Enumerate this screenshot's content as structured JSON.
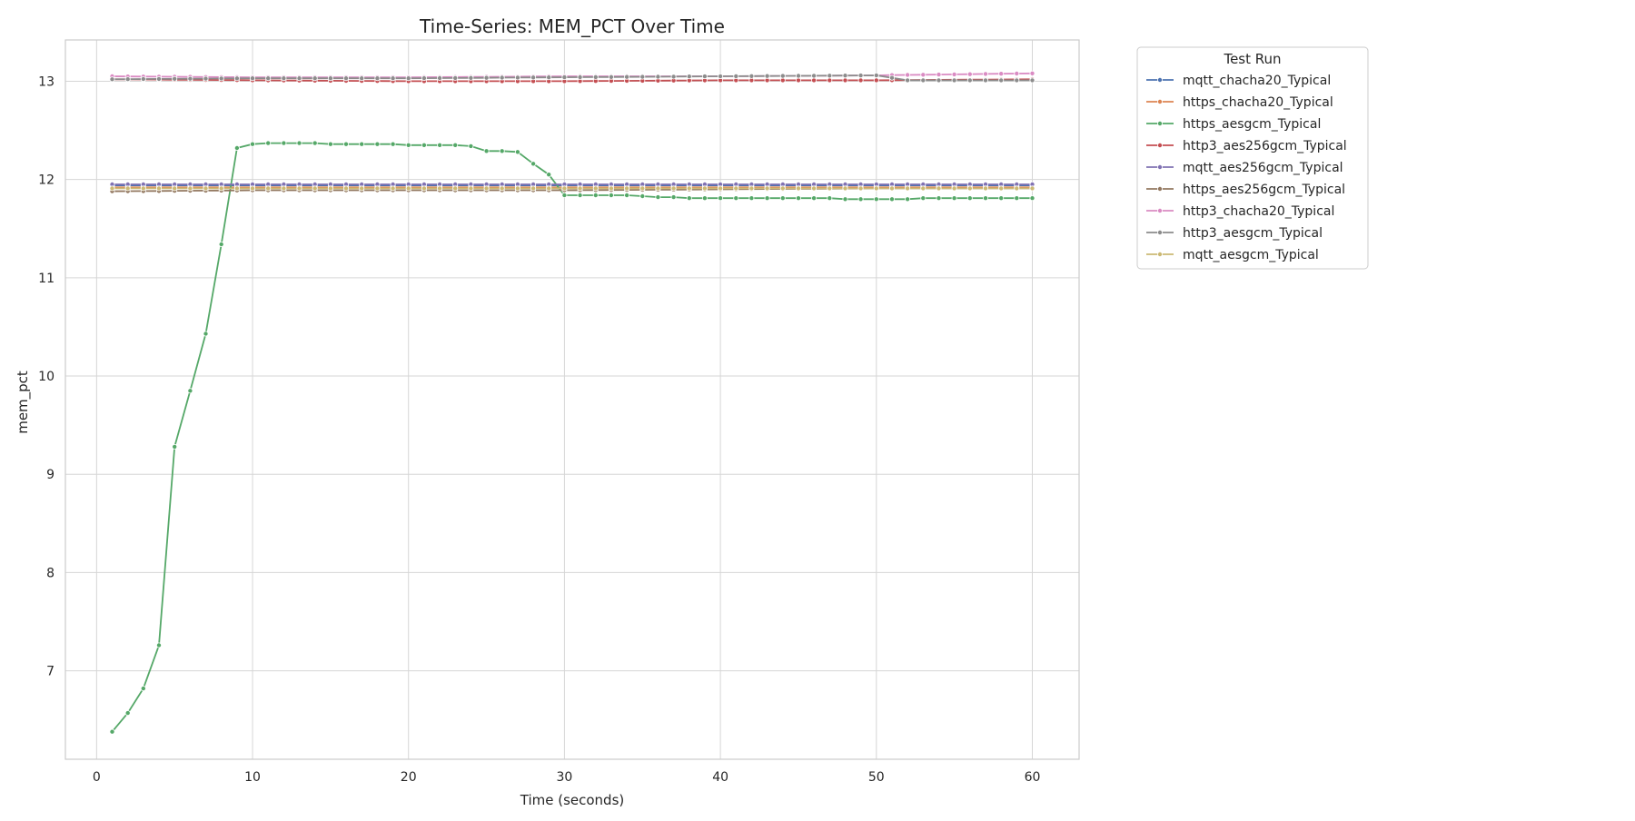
{
  "chart_data": {
    "type": "line",
    "title": "Time-Series: MEM_PCT Over Time",
    "xlabel": "Time (seconds)",
    "ylabel": "mem_pct",
    "xlim": [
      -2,
      63
    ],
    "ylim": [
      6.1,
      13.42
    ],
    "xticks": [
      0,
      10,
      20,
      30,
      40,
      50,
      60
    ],
    "yticks": [
      7,
      8,
      9,
      10,
      11,
      12,
      13
    ],
    "grid": true,
    "markers": true,
    "legend": {
      "title": "Test Run",
      "placement": "outside upper right"
    },
    "series": [
      {
        "name": "mqtt_chacha20_Typical",
        "color": "#4c72b0",
        "points": [
          [
            1,
            11.94
          ],
          [
            10,
            11.94
          ],
          [
            20,
            11.94
          ],
          [
            30,
            11.94
          ],
          [
            40,
            11.94
          ],
          [
            50,
            11.94
          ],
          [
            60,
            11.94
          ]
        ]
      },
      {
        "name": "https_chacha20_Typical",
        "color": "#dd8452",
        "points": [
          [
            1,
            11.92
          ],
          [
            10,
            11.92
          ],
          [
            20,
            11.92
          ],
          [
            30,
            11.92
          ],
          [
            40,
            11.92
          ],
          [
            50,
            11.92
          ],
          [
            60,
            11.92
          ]
        ]
      },
      {
        "name": "https_aesgcm_Typical",
        "color": "#55a868",
        "points": [
          [
            1,
            6.38
          ],
          [
            2,
            6.57
          ],
          [
            3,
            6.82
          ],
          [
            4,
            7.26
          ],
          [
            5,
            9.28
          ],
          [
            6,
            9.85
          ],
          [
            7,
            10.43
          ],
          [
            8,
            11.34
          ],
          [
            9,
            12.32
          ],
          [
            10,
            12.36
          ],
          [
            11,
            12.37
          ],
          [
            12,
            12.37
          ],
          [
            13,
            12.37
          ],
          [
            14,
            12.37
          ],
          [
            15,
            12.36
          ],
          [
            16,
            12.36
          ],
          [
            17,
            12.36
          ],
          [
            18,
            12.36
          ],
          [
            19,
            12.36
          ],
          [
            20,
            12.35
          ],
          [
            21,
            12.35
          ],
          [
            22,
            12.35
          ],
          [
            23,
            12.35
          ],
          [
            24,
            12.34
          ],
          [
            25,
            12.29
          ],
          [
            26,
            12.29
          ],
          [
            27,
            12.28
          ],
          [
            28,
            12.16
          ],
          [
            29,
            12.05
          ],
          [
            30,
            11.84
          ],
          [
            31,
            11.84
          ],
          [
            32,
            11.84
          ],
          [
            33,
            11.84
          ],
          [
            34,
            11.84
          ],
          [
            35,
            11.83
          ],
          [
            36,
            11.82
          ],
          [
            37,
            11.82
          ],
          [
            38,
            11.81
          ],
          [
            39,
            11.81
          ],
          [
            40,
            11.81
          ],
          [
            41,
            11.81
          ],
          [
            42,
            11.81
          ],
          [
            43,
            11.81
          ],
          [
            44,
            11.81
          ],
          [
            45,
            11.81
          ],
          [
            46,
            11.81
          ],
          [
            47,
            11.81
          ],
          [
            48,
            11.8
          ],
          [
            49,
            11.8
          ],
          [
            50,
            11.8
          ],
          [
            51,
            11.8
          ],
          [
            52,
            11.8
          ],
          [
            53,
            11.81
          ],
          [
            54,
            11.81
          ],
          [
            55,
            11.81
          ],
          [
            56,
            11.81
          ],
          [
            57,
            11.81
          ],
          [
            58,
            11.81
          ],
          [
            59,
            11.81
          ],
          [
            60,
            11.81
          ]
        ]
      },
      {
        "name": "http3_aes256gcm_Typical",
        "color": "#c44e52",
        "points": [
          [
            1,
            13.02
          ],
          [
            10,
            13.01
          ],
          [
            20,
            13.0
          ],
          [
            30,
            13.0
          ],
          [
            40,
            13.01
          ],
          [
            50,
            13.01
          ],
          [
            60,
            13.02
          ]
        ]
      },
      {
        "name": "mqtt_aes256gcm_Typical",
        "color": "#8172b3",
        "points": [
          [
            1,
            11.95
          ],
          [
            10,
            11.95
          ],
          [
            20,
            11.95
          ],
          [
            30,
            11.95
          ],
          [
            40,
            11.95
          ],
          [
            50,
            11.95
          ],
          [
            60,
            11.95
          ]
        ]
      },
      {
        "name": "https_aes256gcm_Typical",
        "color": "#937860",
        "points": [
          [
            1,
            11.88
          ],
          [
            10,
            11.89
          ],
          [
            20,
            11.89
          ],
          [
            30,
            11.89
          ],
          [
            40,
            11.9
          ],
          [
            50,
            11.91
          ],
          [
            60,
            11.91
          ]
        ]
      },
      {
        "name": "http3_chacha20_Typical",
        "color": "#da8bc3",
        "points": [
          [
            1,
            13.05
          ],
          [
            10,
            13.04
          ],
          [
            20,
            13.04
          ],
          [
            30,
            13.05
          ],
          [
            40,
            13.05
          ],
          [
            50,
            13.06
          ],
          [
            55,
            13.07
          ],
          [
            60,
            13.08
          ]
        ]
      },
      {
        "name": "http3_aesgcm_Typical",
        "color": "#8c8c8c",
        "points": [
          [
            1,
            13.02
          ],
          [
            10,
            13.03
          ],
          [
            20,
            13.03
          ],
          [
            30,
            13.04
          ],
          [
            40,
            13.05
          ],
          [
            50,
            13.06
          ],
          [
            52,
            13.01
          ],
          [
            60,
            13.01
          ]
        ]
      },
      {
        "name": "mqtt_aesgcm_Typical",
        "color": "#ccb974",
        "points": [
          [
            1,
            11.91
          ],
          [
            10,
            11.91
          ],
          [
            20,
            11.91
          ],
          [
            30,
            11.91
          ],
          [
            40,
            11.91
          ],
          [
            50,
            11.91
          ],
          [
            60,
            11.91
          ]
        ]
      }
    ]
  }
}
